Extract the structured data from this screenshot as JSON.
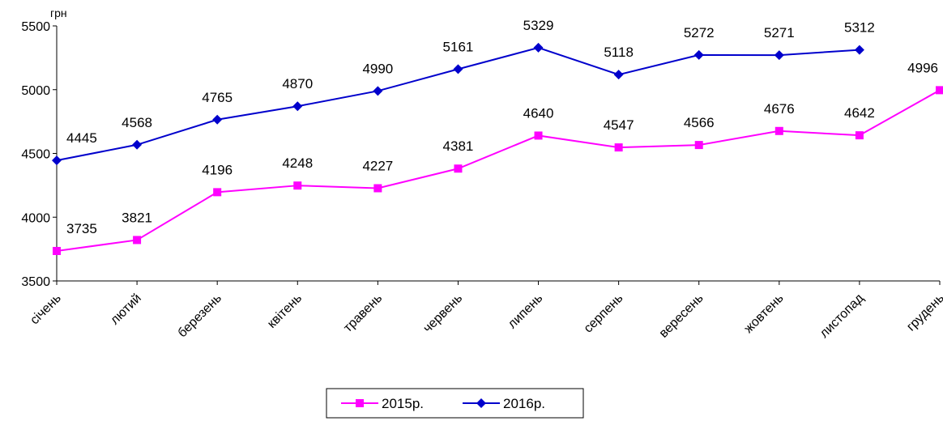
{
  "chart_data": {
    "type": "line",
    "title": "",
    "xlabel": "",
    "ylabel": "грн",
    "ylim": [
      3500,
      5500
    ],
    "yticks": [
      3500,
      4000,
      4500,
      5000,
      5500
    ],
    "grid": false,
    "legend_position": "bottom-center",
    "categories": [
      "січень",
      "лютий",
      "березень",
      "квітень",
      "травень",
      "червень",
      "липень",
      "серпень",
      "вересень",
      "жовтень",
      "листопад",
      "грудень"
    ],
    "series": [
      {
        "name": "2015р.",
        "color": "#ff00ff",
        "marker": "square",
        "values": [
          3735,
          3821,
          4196,
          4248,
          4227,
          4381,
          4640,
          4547,
          4566,
          4676,
          4642,
          4996
        ]
      },
      {
        "name": "2016р.",
        "color": "#0000cc",
        "marker": "diamond",
        "values": [
          4445,
          4568,
          4765,
          4870,
          4990,
          5161,
          5329,
          5118,
          5272,
          5271,
          5312,
          null
        ]
      }
    ]
  }
}
